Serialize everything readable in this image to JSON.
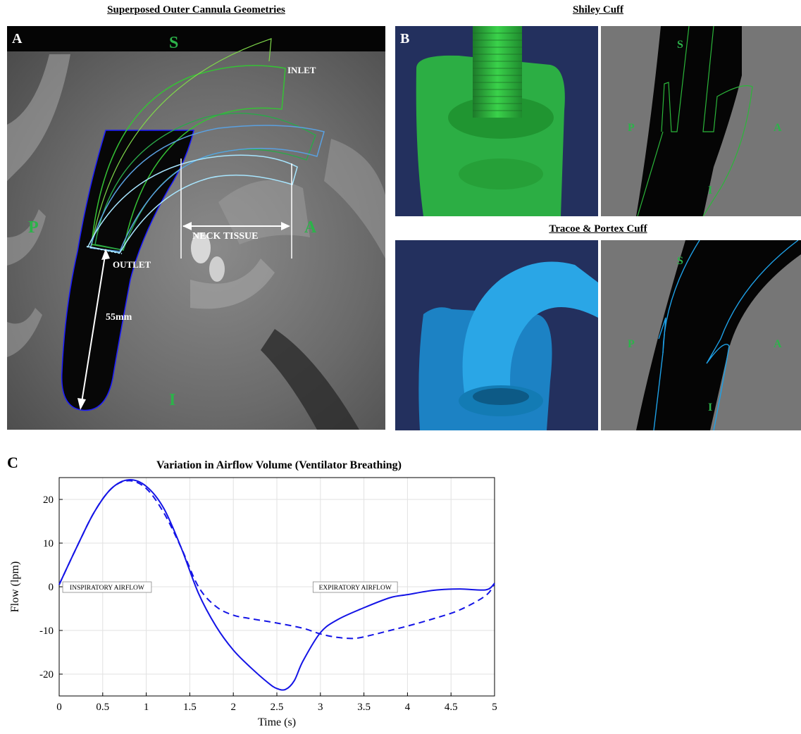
{
  "panel_a": {
    "title": "Superposed Outer Cannula Geometries",
    "letter": "A",
    "orientation": {
      "superior": "S",
      "posterior": "P",
      "anterior": "A",
      "inferior": "I"
    },
    "labels": {
      "inlet": "INLET",
      "outlet": "OUTLET",
      "neck_tissue": "NECK TISSUE",
      "measurement": "55mm"
    }
  },
  "panel_b": {
    "letter": "B",
    "top_title": "Shiley Cuff",
    "bottom_title": "Tracoe & Portex Cuff",
    "orientation": {
      "superior": "S",
      "posterior": "P",
      "anterior": "A",
      "inferior": "I"
    }
  },
  "colors": {
    "shiley": "#22b14c",
    "tracoe": "#1ea0e6",
    "plot_line": "#1414e6",
    "label_green": "#2cb34a",
    "render_bg": "#23305e"
  },
  "chart_data": {
    "letter": "C",
    "type": "line",
    "title": "Variation in Airflow Volume (Ventilator Breathing)",
    "xlabel": "Time (s)",
    "ylabel": "Flow (lpm)",
    "xlim": [
      0,
      5
    ],
    "ylim": [
      -25,
      25
    ],
    "xticks": [
      0,
      0.5,
      1,
      1.5,
      2,
      2.5,
      3,
      3.5,
      4,
      4.5,
      5
    ],
    "xtick_labels": [
      "0",
      "0.5",
      "1",
      "1.5",
      "2",
      "2.5",
      "3",
      "3.5",
      "4",
      "4.5",
      "5"
    ],
    "yticks": [
      -20,
      -10,
      0,
      10,
      20
    ],
    "ytick_labels": [
      "-20",
      "-10",
      "0",
      "10",
      "20"
    ],
    "grid": true,
    "annotations": [
      {
        "text": "INSPIRATORY AIRFLOW",
        "x": 0.55,
        "y": 0
      },
      {
        "text": "EXPIRATORY AIRFLOW",
        "x": 3.4,
        "y": 0
      }
    ],
    "series": [
      {
        "style": "solid",
        "x": [
          0,
          0.2,
          0.4,
          0.6,
          0.8,
          1.0,
          1.2,
          1.4,
          1.6,
          1.8,
          2.0,
          2.2,
          2.4,
          2.5,
          2.6,
          2.7,
          2.8,
          3.0,
          3.2,
          3.5,
          3.8,
          4.0,
          4.3,
          4.6,
          4.9,
          5.0
        ],
        "y": [
          0.5,
          9,
          17,
          22.5,
          24.5,
          23,
          18,
          9,
          -1.5,
          -9,
          -14.5,
          -18.5,
          -22,
          -23.3,
          -23.5,
          -21.5,
          -17,
          -10.5,
          -7.5,
          -4.8,
          -2.5,
          -1.8,
          -0.8,
          -0.5,
          -0.7,
          0.8
        ]
      },
      {
        "style": "dashed",
        "x": [
          0,
          0.2,
          0.4,
          0.6,
          0.8,
          1.0,
          1.2,
          1.4,
          1.6,
          1.8,
          2.0,
          2.2,
          2.5,
          2.8,
          3.0,
          3.2,
          3.4,
          3.6,
          3.8,
          4.0,
          4.3,
          4.6,
          4.9,
          5.0
        ],
        "y": [
          0.5,
          9,
          17,
          22.5,
          24.3,
          22.5,
          17,
          9,
          0,
          -4.5,
          -6.5,
          -7.3,
          -8.3,
          -9.5,
          -10.8,
          -11.6,
          -11.8,
          -11,
          -10,
          -9,
          -7.3,
          -5.3,
          -2,
          0.8
        ]
      }
    ]
  }
}
